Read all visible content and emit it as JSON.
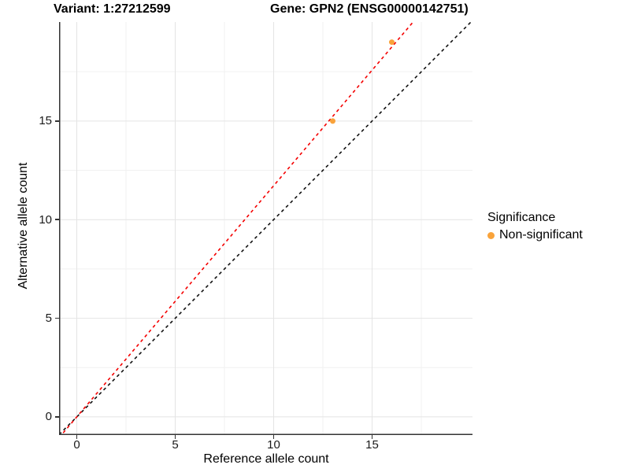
{
  "titles": {
    "left": "Variant: 1:27212599",
    "right": "Gene: GPN2 (ENSG00000142751)"
  },
  "axes": {
    "x": {
      "label": "Reference allele count",
      "tick_labels": [
        "0",
        "5",
        "10",
        "15"
      ]
    },
    "y": {
      "label": "Alternative allele count",
      "tick_labels": [
        "0",
        "5",
        "10",
        "15"
      ]
    }
  },
  "legend": {
    "title": "Significance",
    "items": [
      {
        "label": "Non-significant",
        "color": "#F9A33B"
      }
    ]
  },
  "colors": {
    "grid_major": "#E4E4E4",
    "grid_minor": "#F1F1F1",
    "axis_line": "#333333",
    "identity_line": "#111111",
    "fit_line": "#F40000",
    "point": "#F9A33B"
  },
  "chart_data": {
    "type": "scatter",
    "title": "Variant: 1:27212599 — Gene: GPN2 (ENSG00000142751)",
    "xlabel": "Reference allele count",
    "ylabel": "Alternative allele count",
    "xlim": [
      -0.9,
      20.1
    ],
    "ylim": [
      -0.92,
      20.02
    ],
    "x_ticks": [
      0,
      5,
      10,
      15
    ],
    "y_ticks": [
      0,
      5,
      10,
      15
    ],
    "minor_ticks": [
      2.5,
      7.5,
      12.5,
      17.5
    ],
    "grid": "on",
    "legend_position": "right",
    "points": [
      {
        "x": 13,
        "y": 15,
        "series": "Non-significant"
      },
      {
        "x": 16,
        "y": 19,
        "series": "Non-significant"
      }
    ],
    "lines": [
      {
        "name": "identity",
        "slope": 1,
        "intercept": 0,
        "style": "dashed",
        "color": "#111111"
      },
      {
        "name": "expected-ratio",
        "slope": 1.172,
        "intercept": 0,
        "style": "dashed",
        "color": "#F40000"
      }
    ]
  }
}
